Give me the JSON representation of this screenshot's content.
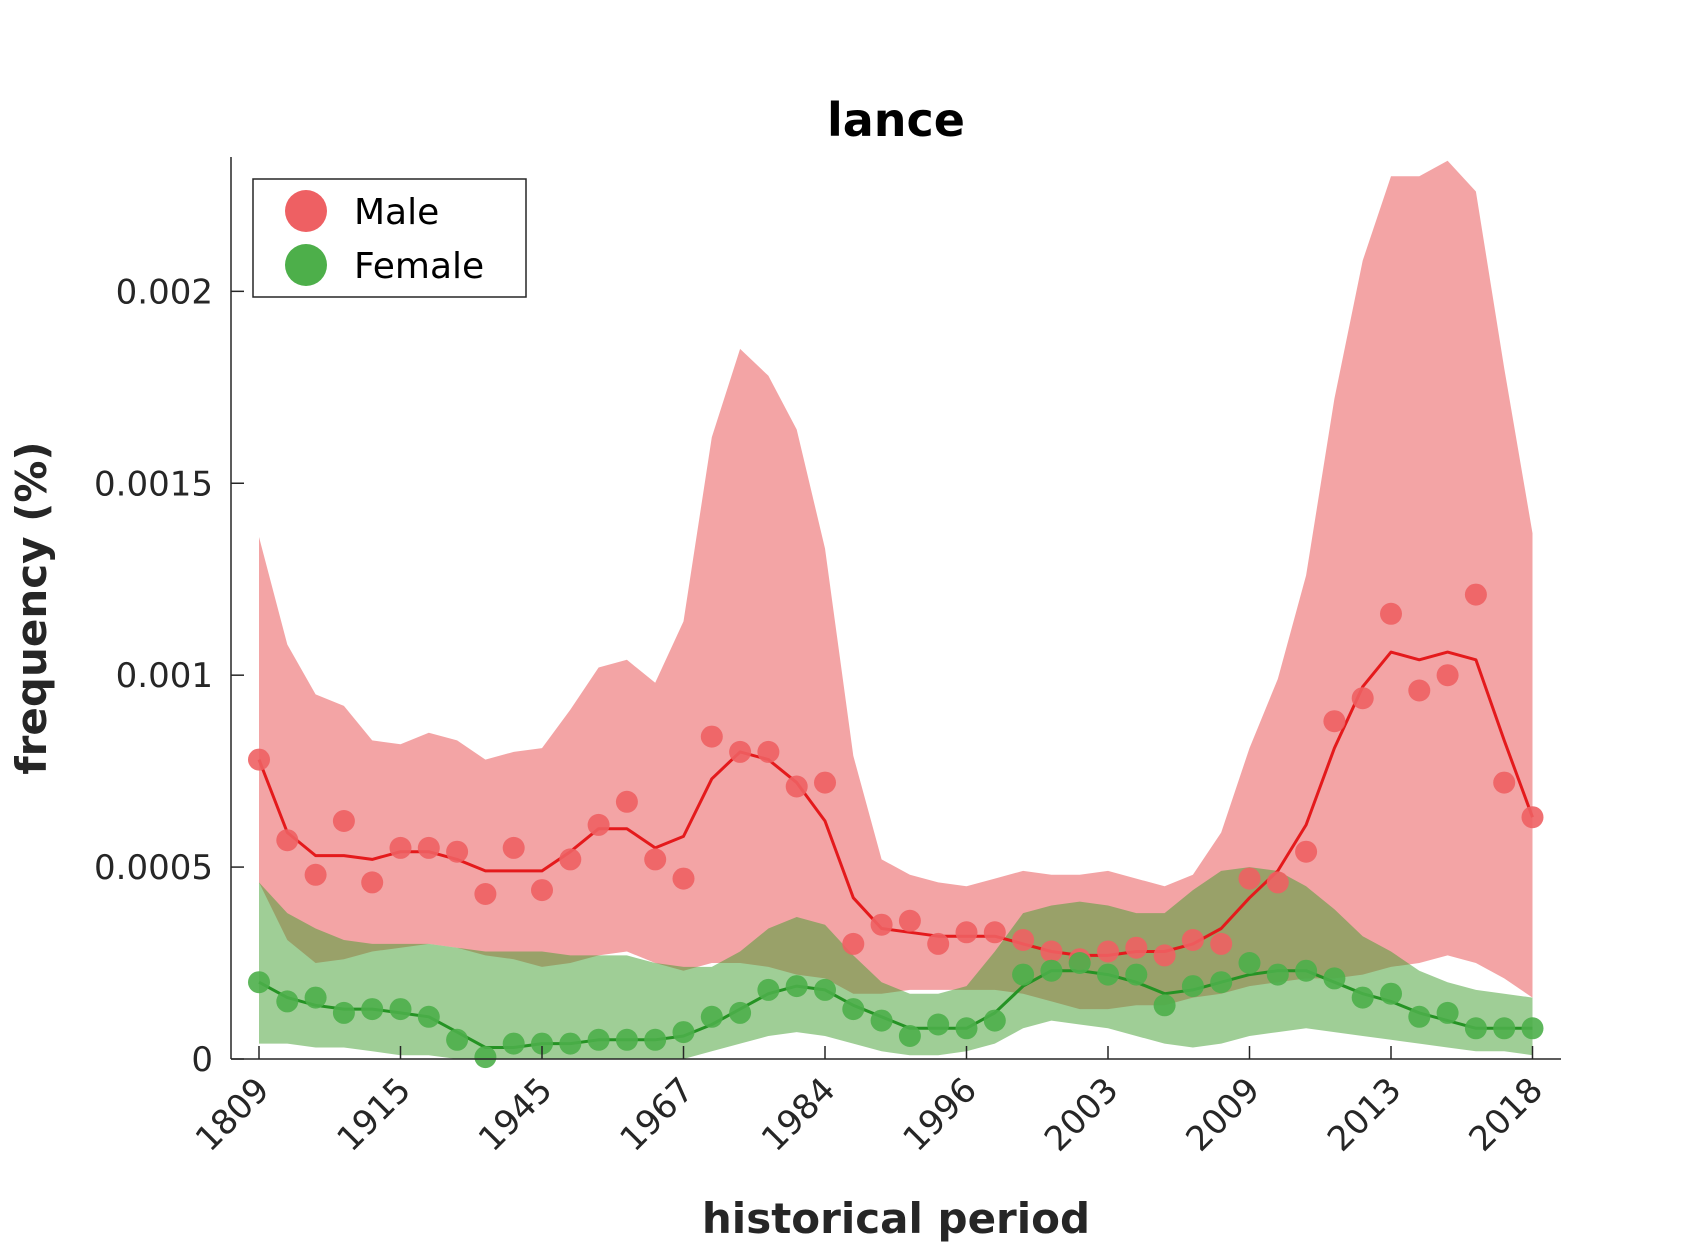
{
  "chart_data": {
    "type": "line",
    "title": "lance",
    "xlabel": "historical period",
    "ylabel": "frequency (%)",
    "ylim": [
      0,
      0.00235
    ],
    "yticks": [
      {
        "value": 0,
        "label": "0"
      },
      {
        "value": 0.0005,
        "label": "0.0005"
      },
      {
        "value": 0.001,
        "label": "0.001"
      },
      {
        "value": 0.0015,
        "label": "0.0015"
      },
      {
        "value": 0.002,
        "label": "0.002"
      }
    ],
    "xticks": [
      {
        "index": 0,
        "label": "1809"
      },
      {
        "index": 5,
        "label": "1915"
      },
      {
        "index": 10,
        "label": "1945"
      },
      {
        "index": 15,
        "label": "1967"
      },
      {
        "index": 20,
        "label": "1984"
      },
      {
        "index": 25,
        "label": "1996"
      },
      {
        "index": 30,
        "label": "2003"
      },
      {
        "index": 35,
        "label": "2009"
      },
      {
        "index": 40,
        "label": "2013"
      },
      {
        "index": 45,
        "label": "2018"
      }
    ],
    "legend": {
      "position": "top-left"
    },
    "series": [
      {
        "name": "Male",
        "color": "#e41a1c",
        "marker_color": "#ee6063",
        "band_color": "#f4a3a4",
        "points": [
          0.00078,
          0.00057,
          0.00048,
          0.00062,
          0.00046,
          0.00055,
          0.00055,
          0.00054,
          0.00043,
          0.00055,
          0.00044,
          0.00052,
          0.00061,
          0.00067,
          0.00052,
          0.00047,
          0.00084,
          0.0008,
          0.0008,
          0.00071,
          0.00072,
          0.0003,
          0.00035,
          0.00036,
          0.0003,
          0.00033,
          0.00033,
          0.00031,
          0.00028,
          0.00026,
          0.00028,
          0.00029,
          0.00027,
          0.00031,
          0.0003,
          0.00047,
          0.00046,
          0.00054,
          0.00088,
          0.00094,
          0.00116,
          0.00096,
          0.001,
          0.00121,
          0.00072,
          0.00063
        ],
        "smooth": [
          0.00078,
          0.00059,
          0.00053,
          0.00053,
          0.00052,
          0.00054,
          0.00054,
          0.00052,
          0.00049,
          0.00049,
          0.00049,
          0.00054,
          0.0006,
          0.0006,
          0.00055,
          0.00058,
          0.00073,
          0.0008,
          0.00078,
          0.00072,
          0.00062,
          0.00042,
          0.00034,
          0.00033,
          0.00032,
          0.00032,
          0.00032,
          0.0003,
          0.00028,
          0.00027,
          0.00027,
          0.00028,
          0.00028,
          0.0003,
          0.00034,
          0.00042,
          0.00049,
          0.00061,
          0.00081,
          0.00097,
          0.00106,
          0.00104,
          0.00106,
          0.00104,
          0.00083,
          0.00063
        ],
        "upper": [
          0.00136,
          0.00108,
          0.00095,
          0.00092,
          0.00083,
          0.00082,
          0.00085,
          0.00083,
          0.00078,
          0.0008,
          0.00081,
          0.00091,
          0.00102,
          0.00104,
          0.00098,
          0.00114,
          0.00162,
          0.00185,
          0.00178,
          0.00164,
          0.00133,
          0.00079,
          0.00052,
          0.00048,
          0.00046,
          0.00045,
          0.00047,
          0.00049,
          0.00048,
          0.00048,
          0.00049,
          0.00047,
          0.00045,
          0.00048,
          0.00059,
          0.00081,
          0.00099,
          0.00126,
          0.00172,
          0.00208,
          0.0023,
          0.0023,
          0.00234,
          0.00226,
          0.0018,
          0.00137
        ],
        "lower": [
          0.00046,
          0.00031,
          0.00025,
          0.00026,
          0.00028,
          0.00029,
          0.0003,
          0.00029,
          0.00027,
          0.00026,
          0.00024,
          0.00025,
          0.00027,
          0.00028,
          0.00025,
          0.00023,
          0.00025,
          0.00025,
          0.00024,
          0.00022,
          0.00021,
          0.00017,
          0.00017,
          0.00018,
          0.00018,
          0.00018,
          0.00018,
          0.00017,
          0.00015,
          0.00013,
          0.00013,
          0.00014,
          0.00014,
          0.00016,
          0.00017,
          0.00019,
          0.0002,
          0.00021,
          0.00021,
          0.00022,
          0.00024,
          0.00025,
          0.00027,
          0.00025,
          0.00021,
          0.00016
        ]
      },
      {
        "name": "Female",
        "color": "#259324",
        "marker_color": "#4daf4a",
        "band_color": "#a6d8a4",
        "points": [
          0.0002,
          0.00015,
          0.00016,
          0.00012,
          0.00013,
          0.00013,
          0.00011,
          5e-05,
          5e-06,
          4e-05,
          4e-05,
          4e-05,
          5e-05,
          5e-05,
          5e-05,
          7e-05,
          0.00011,
          0.00012,
          0.00018,
          0.00019,
          0.00018,
          0.00013,
          0.0001,
          6e-05,
          9e-05,
          8e-05,
          0.0001,
          0.00022,
          0.00023,
          0.00025,
          0.00022,
          0.00022,
          0.00014,
          0.00019,
          0.0002,
          0.00025,
          0.00022,
          0.00023,
          0.00021,
          0.00016,
          0.00017,
          0.00011,
          0.00012,
          8e-05,
          8e-05,
          8e-05
        ],
        "smooth": [
          0.0002,
          0.00016,
          0.00014,
          0.00013,
          0.00013,
          0.00012,
          0.00011,
          7e-05,
          3e-05,
          3e-05,
          4e-05,
          4e-05,
          5e-05,
          5e-05,
          5e-05,
          6e-05,
          9e-05,
          0.00013,
          0.00017,
          0.00019,
          0.00018,
          0.00014,
          0.00011,
          8e-05,
          8e-05,
          8e-05,
          0.00012,
          0.00019,
          0.00023,
          0.00023,
          0.00022,
          0.0002,
          0.00017,
          0.00018,
          0.0002,
          0.00022,
          0.00023,
          0.00023,
          0.0002,
          0.00017,
          0.00015,
          0.00012,
          0.0001,
          8e-05,
          8e-05,
          8e-05
        ],
        "upper": [
          0.00046,
          0.00038,
          0.00034,
          0.00031,
          0.0003,
          0.0003,
          0.0003,
          0.00029,
          0.00028,
          0.00028,
          0.00028,
          0.00027,
          0.00027,
          0.00027,
          0.00025,
          0.00024,
          0.00024,
          0.00028,
          0.00034,
          0.00037,
          0.00035,
          0.00027,
          0.0002,
          0.00017,
          0.00017,
          0.00019,
          0.00028,
          0.00038,
          0.0004,
          0.00041,
          0.0004,
          0.00038,
          0.00038,
          0.00044,
          0.00049,
          0.0005,
          0.00049,
          0.00045,
          0.00039,
          0.00032,
          0.00028,
          0.00023,
          0.0002,
          0.00018,
          0.00017,
          0.00016
        ],
        "lower": [
          4e-05,
          4e-05,
          3e-05,
          3e-05,
          2e-05,
          1e-05,
          1e-05,
          0.0,
          0.0,
          0.0,
          0.0,
          0.0,
          0.0,
          0.0,
          0.0,
          0.0,
          2e-05,
          4e-05,
          6e-05,
          7e-05,
          6e-05,
          4e-05,
          2e-05,
          1e-05,
          1e-05,
          2e-05,
          4e-05,
          8e-05,
          0.0001,
          9e-05,
          8e-05,
          6e-05,
          4e-05,
          3e-05,
          4e-05,
          6e-05,
          7e-05,
          8e-05,
          7e-05,
          6e-05,
          5e-05,
          4e-05,
          3e-05,
          2e-05,
          2e-05,
          1e-05
        ]
      }
    ]
  }
}
